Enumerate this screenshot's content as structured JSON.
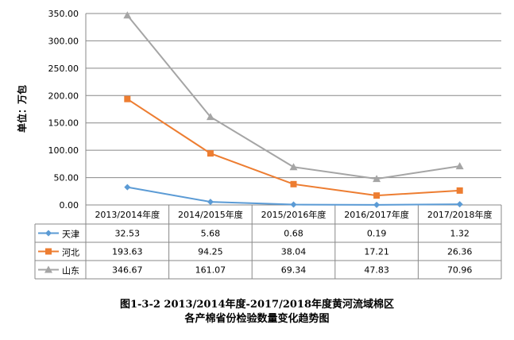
{
  "chart_data": {
    "type": "line",
    "title": "图1-3-2 2013/2014年度-2017/2018年度黄河流域棉区",
    "subtitle": "各产棉省份检验数量变化趋势图",
    "ylabel": "单位：万包",
    "xlabel": "",
    "ylim": [
      0,
      350
    ],
    "yticks": [
      "0.00",
      "50.00",
      "100.00",
      "150.00",
      "200.00",
      "250.00",
      "300.00",
      "350.00"
    ],
    "grid": true,
    "legend": "data-table-left",
    "categories": [
      "2013/2014年度",
      "2014/2015年度",
      "2015/2016年度",
      "2016/2017年度",
      "2017/2018年度"
    ],
    "series": [
      {
        "name": "天津",
        "color": "#5B9BD5",
        "marker": "diamond",
        "values": [
          32.53,
          5.68,
          0.68,
          0.19,
          1.32
        ],
        "labels": [
          "32.53",
          "5.68",
          "0.68",
          "0.19",
          "1.32"
        ]
      },
      {
        "name": "河北",
        "color": "#ED7D31",
        "marker": "square",
        "values": [
          193.63,
          94.25,
          38.04,
          17.21,
          26.36
        ],
        "labels": [
          "193.63",
          "94.25",
          "38.04",
          "17.21",
          "26.36"
        ]
      },
      {
        "name": "山东",
        "color": "#A5A5A5",
        "marker": "triangle",
        "values": [
          346.67,
          161.07,
          69.34,
          47.83,
          70.96
        ],
        "labels": [
          "346.67",
          "161.07",
          "69.34",
          "47.83",
          "70.96"
        ]
      }
    ]
  }
}
